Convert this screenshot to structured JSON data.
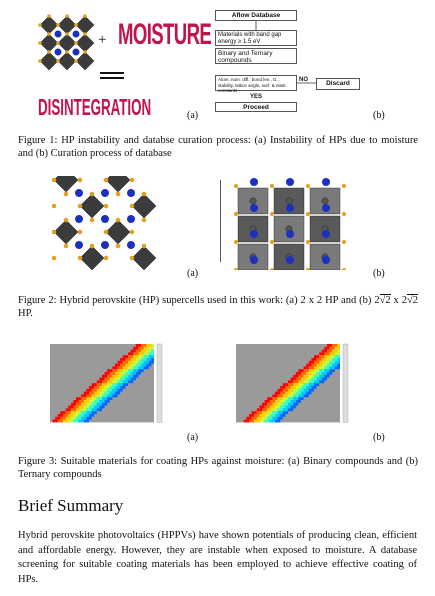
{
  "figure1": {
    "plus": "+",
    "moisture": "MOISTURE",
    "disintegration": "DISINTEGRATION",
    "label_a": "(a)",
    "label_b": "(b)",
    "flow": {
      "aflow": "Aflow Database",
      "bandgap": "Materials with band gap energy ≥ 1.5 eV",
      "binary": "Binary and Ternary compounds",
      "criteria": "Atom. num. diff., bond len., G.. stability, lattice angle, surf. & elast. constants",
      "no": "NO",
      "discard": "Discard",
      "yes": "YES",
      "proceed": "Proceed"
    },
    "caption": "Figure 1: HP instability and databse curation process: (a) Instability of HPs due to moisture and (b) Curation process of database",
    "colors": {
      "moisture": "#c0144b",
      "disintegration": "#c0144b",
      "octahedron": "#3b3b3b",
      "a_site": "#1d2fbf",
      "x_site": "#e0a020"
    }
  },
  "figure2": {
    "label_a": "(a)",
    "label_b": "(b)",
    "caption_pre": "Figure 2: Hybrid perovskite (HP) supercells used in this work: (a) 2 x 2 HP and (b) 2",
    "caption_sqrt1": "√2",
    "caption_mid": " x 2",
    "caption_sqrt2": "√2",
    "caption_post": " HP."
  },
  "figure3": {
    "label_a": "(a)",
    "label_b": "(b)",
    "caption": "Figure 3: Suitable materials for coating HPs against moisture: (a) Binary compounds and (b) Ternary compounds"
  },
  "summary": {
    "heading": "Brief Summary",
    "paragraph": "Hybrid perovskite photovoltaics (HPPVs) have shown potentials of producing clean, efficient and affordable energy. However, they are instable when exposed to moisture. A database screening for suitable coating materials has been employed to achieve effective coating of HPs."
  }
}
